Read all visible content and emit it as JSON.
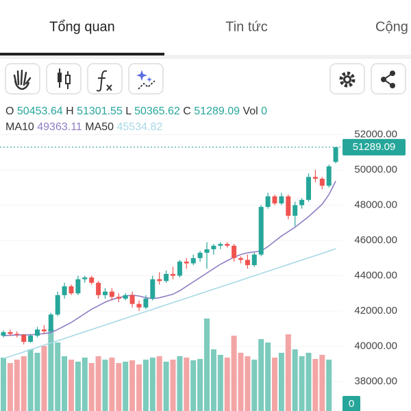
{
  "tabs": [
    "Tổng quan",
    "Tin tức",
    "Cộng"
  ],
  "legend": {
    "open": "O",
    "high": "H",
    "low": "L",
    "close": "C",
    "volume": "Vol"
  },
  "chart_data": {
    "type": "candlestick",
    "up_color": "#26a69a",
    "down_color": "#ef5350",
    "volume_up_color": "#7ccbbd",
    "volume_down_color": "#f3a5a5",
    "open": [
      40600,
      40800,
      40700,
      40650,
      40250,
      40600,
      40950,
      40850,
      41800,
      42900,
      43400,
      43000,
      43800,
      43900,
      43600,
      42900,
      43100,
      42800,
      42700,
      42900,
      42400,
      42200,
      42700,
      43800,
      43700,
      44100,
      44000,
      44800,
      44700,
      45000,
      45300,
      45500,
      45700,
      45800,
      45700,
      45000,
      44900,
      44600,
      45200,
      47900,
      48500,
      48100,
      48500,
      47400,
      48000,
      48300,
      49600,
      49500,
      49100,
      50453.64
    ],
    "high": [
      40900,
      40950,
      40850,
      40700,
      40700,
      41100,
      41200,
      41900,
      43100,
      43600,
      43500,
      44000,
      44000,
      44000,
      43700,
      43300,
      43300,
      43000,
      43000,
      43100,
      42600,
      42900,
      44000,
      44200,
      44300,
      44500,
      44900,
      45000,
      45200,
      45400,
      45900,
      45800,
      45900,
      45900,
      45800,
      45100,
      45200,
      45300,
      48000,
      48700,
      48600,
      48700,
      48600,
      48200,
      48400,
      49800,
      50000,
      49600,
      50300,
      51301.55
    ],
    "low": [
      40500,
      40600,
      40500,
      40100,
      40200,
      40500,
      40700,
      40800,
      41700,
      42700,
      42900,
      42900,
      43600,
      43500,
      42700,
      42700,
      42600,
      42500,
      42600,
      42200,
      42000,
      42100,
      42600,
      43500,
      43600,
      43800,
      43900,
      44400,
      44600,
      44800,
      44400,
      45200,
      45500,
      45600,
      44800,
      44700,
      44400,
      44500,
      45100,
      47800,
      48000,
      48000,
      47200,
      46800,
      47800,
      48200,
      49300,
      48900,
      49000,
      50365.62
    ],
    "close": [
      40800,
      40700,
      40650,
      40250,
      40600,
      40950,
      40850,
      41800,
      42900,
      43400,
      43000,
      43800,
      43900,
      43600,
      42900,
      43100,
      42800,
      42700,
      42900,
      42400,
      42200,
      42700,
      43800,
      43700,
      44100,
      44000,
      44800,
      44700,
      45000,
      45300,
      45500,
      45700,
      45800,
      45700,
      45000,
      44900,
      44600,
      45200,
      47900,
      48500,
      48100,
      48500,
      47400,
      48000,
      48300,
      49600,
      49500,
      49100,
      50200,
      51289.09
    ],
    "volume": [
      78,
      70,
      75,
      80,
      90,
      85,
      95,
      120,
      100,
      80,
      75,
      72,
      78,
      70,
      80,
      75,
      78,
      70,
      72,
      74,
      68,
      75,
      78,
      80,
      72,
      75,
      80,
      78,
      74,
      76,
      135,
      90,
      82,
      78,
      110,
      85,
      80,
      75,
      105,
      100,
      78,
      85,
      112,
      90,
      80,
      85,
      76,
      82,
      75,
      0
    ],
    "series": [
      {
        "name": "MA10",
        "color": "#8e7cc3",
        "values": [
          40600,
          40620,
          40640,
          40650,
          40650,
          40680,
          40720,
          40780,
          40950,
          41150,
          41350,
          41600,
          41850,
          42100,
          42300,
          42500,
          42650,
          42750,
          42850,
          42900,
          42850,
          42750,
          42700,
          42750,
          42850,
          42950,
          43150,
          43400,
          43650,
          43900,
          44150,
          44400,
          44650,
          44850,
          45050,
          45200,
          45300,
          45350,
          45400,
          45650,
          45950,
          46250,
          46500,
          46750,
          47050,
          47350,
          47700,
          48050,
          48600,
          49363.11
        ]
      },
      {
        "name": "MA50",
        "color": "#a8d8e8",
        "values": [
          39300,
          39427,
          39554,
          39681,
          39808,
          39935,
          40062,
          40189,
          40316,
          40443,
          40570,
          40697,
          40824,
          40951,
          41078,
          41205,
          41332,
          41459,
          41586,
          41713,
          41840,
          41967,
          42094,
          42221,
          42348,
          42475,
          42602,
          42729,
          42856,
          42983,
          43110,
          43237,
          43364,
          43491,
          43618,
          43745,
          43872,
          43999,
          44126,
          44253,
          44380,
          44507,
          44634,
          44761,
          44888,
          45015,
          45142,
          45269,
          45396,
          45534.82
        ]
      }
    ],
    "ylim": [
      36330,
      52447
    ],
    "yticks": [
      {
        "value": 38000,
        "label": "38000.00"
      },
      {
        "value": 40000,
        "label": "40000.00"
      },
      {
        "value": 42000,
        "label": "42000.00"
      },
      {
        "value": 44000,
        "label": "44000.00"
      },
      {
        "value": 46000,
        "label": "46000.00"
      },
      {
        "value": 48000,
        "label": "48000.00"
      },
      {
        "value": 50000,
        "label": "50000.00"
      },
      {
        "value": 52000,
        "label": "52000.00"
      }
    ],
    "vlim": [
      0,
      250
    ],
    "grid": true
  }
}
